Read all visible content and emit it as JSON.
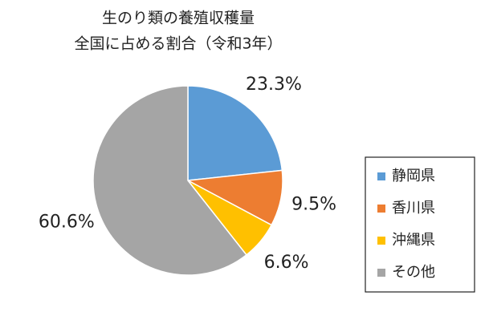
{
  "chart_data": {
    "type": "pie",
    "title": "生のり類の養殖収穫量",
    "subtitle": "全国に占める割合（令和3年）",
    "categories": [
      "静岡県",
      "香川県",
      "沖縄県",
      "その他"
    ],
    "values": [
      23.3,
      9.5,
      6.6,
      60.6
    ],
    "value_labels": [
      "23.3%",
      "9.5%",
      "6.6%",
      "60.6%"
    ],
    "colors": [
      "#5b9bd5",
      "#ed7d31",
      "#ffc000",
      "#a5a5a5"
    ],
    "legend": "right"
  }
}
